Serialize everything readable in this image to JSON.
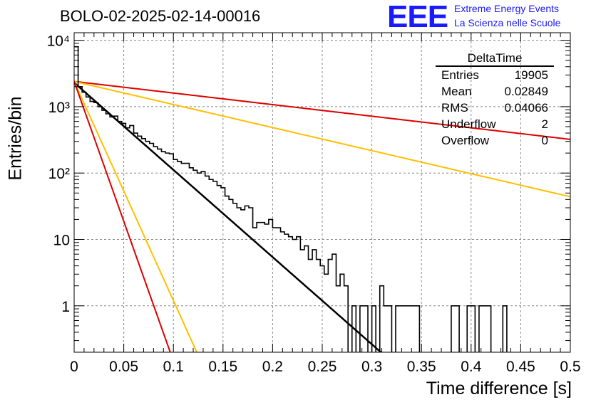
{
  "title": "BOLO-02-2025-02-14-00016",
  "logo": {
    "mark": "EEE",
    "line1": "Extreme Energy Events",
    "line2": "La Scienza nelle Scuole"
  },
  "stats_box": {
    "title": "DeltaTime",
    "rows": [
      {
        "label": "Entries",
        "value": "19905"
      },
      {
        "label": "Mean",
        "value": "0.02849"
      },
      {
        "label": "RMS",
        "value": "0.04066"
      },
      {
        "label": "Underflow",
        "value": "2"
      },
      {
        "label": "Overflow",
        "value": "0"
      }
    ]
  },
  "colors": {
    "histogram": "#000000",
    "fit_main": "#000000",
    "fit_red": "#dd0000",
    "fit_yellow": "#ffc000",
    "grid": "#888888"
  },
  "chart_data": {
    "type": "line",
    "xlabel": "Time difference [s]",
    "ylabel": "Entries/bin",
    "xlim": [
      0,
      0.5
    ],
    "ylim": [
      0.2,
      13000
    ],
    "yscale": "log",
    "grid": true,
    "x_ticks": [
      "0",
      "0.05",
      "0.1",
      "0.15",
      "0.2",
      "0.25",
      "0.3",
      "0.35",
      "0.4",
      "0.45",
      "0.5"
    ],
    "y_ticks": [
      {
        "value": 1,
        "label": "1"
      },
      {
        "value": 10,
        "label": "10"
      },
      {
        "value": 100,
        "label": "10²"
      },
      {
        "value": 1000,
        "label": "10³"
      },
      {
        "value": 10000,
        "label": "10⁴"
      }
    ],
    "histogram": {
      "bin_width": 0.004,
      "x_start": 0,
      "counts": [
        8000,
        2000,
        1650,
        1400,
        1200,
        1150,
        1000,
        880,
        780,
        700,
        720,
        600,
        560,
        480,
        520,
        400,
        360,
        330,
        300,
        280,
        250,
        230,
        210,
        200,
        195,
        160,
        150,
        140,
        140,
        120,
        110,
        100,
        105,
        90,
        80,
        75,
        65,
        60,
        45,
        40,
        35,
        30,
        28,
        32,
        30,
        15,
        18,
        18,
        17,
        20,
        15,
        15,
        13,
        12,
        11,
        10,
        11,
        7,
        8,
        5,
        7,
        5,
        4,
        3,
        5,
        6,
        2,
        3,
        2,
        0,
        1,
        0,
        1,
        1,
        0,
        1,
        0,
        2,
        1,
        1,
        0,
        1,
        1,
        1,
        1,
        1,
        1,
        0,
        0,
        0,
        0,
        0,
        0,
        0,
        0,
        1,
        1,
        0,
        0,
        1,
        1,
        0,
        1,
        1,
        1,
        0,
        0,
        0,
        1,
        0,
        0,
        0,
        0,
        0,
        0,
        0,
        0,
        0,
        0,
        0,
        0,
        0,
        0,
        0,
        0
      ]
    },
    "series": [
      {
        "style": "main",
        "color": "#000000",
        "amplitude": 2300,
        "rate": 30.25,
        "x_end": 0.31
      },
      {
        "style": "red",
        "color": "#dd0000",
        "amplitude": 2400,
        "rate": 4.02,
        "x_end": 0.5
      },
      {
        "style": "yellow",
        "color": "#ffc000",
        "amplitude": 2400,
        "rate": 8.0,
        "x_end": 0.5
      },
      {
        "style": "yellow",
        "color": "#ffc000",
        "amplitude": 2400,
        "rate": 76.0,
        "x_end": 0.125
      },
      {
        "style": "red",
        "color": "#dd0000",
        "amplitude": 2400,
        "rate": 97.0,
        "x_end": 0.1
      }
    ]
  }
}
